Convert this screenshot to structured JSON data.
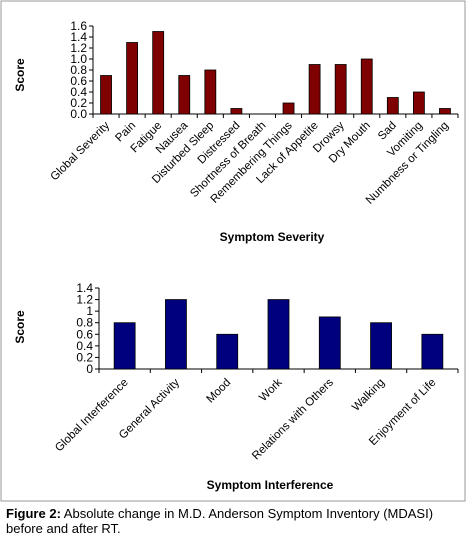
{
  "chart_data": [
    {
      "type": "bar",
      "xlabel": "Symptom Severity",
      "ylabel": "Score",
      "ylim": [
        0,
        1.6
      ],
      "yticks": [
        "0.0",
        "0.2",
        "0.4",
        "0.6",
        "0.8",
        "1.0",
        "1.2",
        "1.4",
        "1.6"
      ],
      "categories": [
        "Global Severity",
        "Pain",
        "Fatigue",
        "Nausea",
        "Disturbed Sleep",
        "Distressed",
        "Shortness of Breath",
        "Remembering Things",
        "Lack of Appetite",
        "Drowsy",
        "Dry Mouth",
        "Sad",
        "Vomiting",
        "Numbness or Tingling"
      ],
      "values": [
        0.7,
        1.3,
        1.5,
        0.7,
        0.8,
        0.1,
        0.0,
        0.2,
        0.9,
        0.9,
        1.0,
        0.3,
        0.4,
        0.1
      ],
      "bar_color": "#7f0000",
      "grid": false
    },
    {
      "type": "bar",
      "xlabel": "Symptom Interference",
      "ylabel": "Score",
      "ylim": [
        0,
        1.4
      ],
      "yticks": [
        "0",
        "0.2",
        "0.4",
        "0.6",
        "0.8",
        "1",
        "1.2",
        "1.4"
      ],
      "categories": [
        "Global Interference",
        "General Activity",
        "Mood",
        "Work",
        "Relations with Others",
        "Walking",
        "Enjoyment of Life"
      ],
      "values": [
        0.8,
        1.2,
        0.6,
        1.2,
        0.9,
        0.8,
        0.6
      ],
      "bar_color": "#00007f",
      "grid": false
    }
  ],
  "caption": {
    "label": "Figure 2:",
    "text": " Absolute change in M.D. Anderson Symptom Inventory (MDASI) before and after RT."
  },
  "frame_color": "#9a9a9a"
}
